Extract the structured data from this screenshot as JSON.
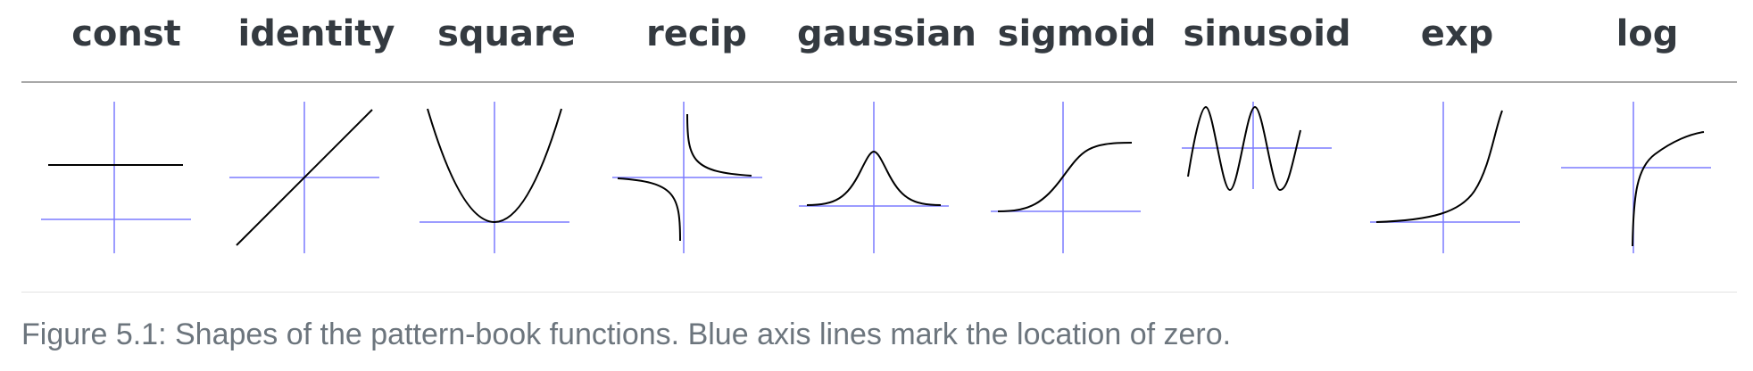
{
  "columns": [
    {
      "id": "const",
      "label": "const"
    },
    {
      "id": "identity",
      "label": "identity"
    },
    {
      "id": "square",
      "label": "square"
    },
    {
      "id": "recip",
      "label": "recip"
    },
    {
      "id": "gaussian",
      "label": "gaussian"
    },
    {
      "id": "sigmoid",
      "label": "sigmoid"
    },
    {
      "id": "sinusoid",
      "label": "sinusoid"
    },
    {
      "id": "exp",
      "label": "exp"
    },
    {
      "id": "log",
      "label": "log"
    }
  ],
  "caption": "Figure 5.1: Shapes of the pattern-book functions. Blue axis lines mark the location of zero.",
  "colors": {
    "axis": "#7b7bff",
    "curve": "#000000",
    "title": "#343a40",
    "caption": "#6c757d",
    "rule": "#a8a8a8"
  }
}
